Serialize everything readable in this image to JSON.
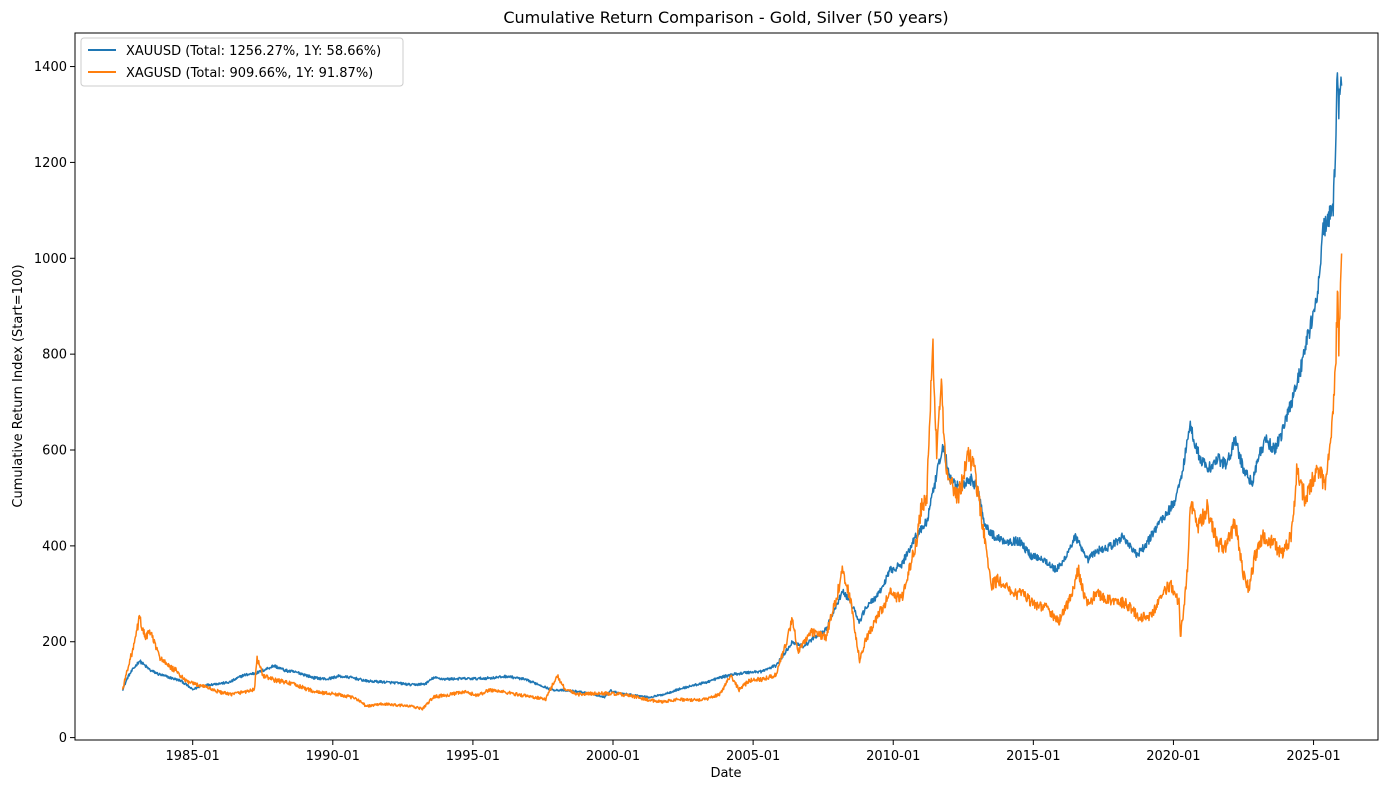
{
  "chart_data": {
    "type": "line",
    "title": "Cumulative Return Comparison - Gold, Silver (50 years)",
    "xlabel": "Date",
    "ylabel": "Cumulative Return Index (Start=100)",
    "xlim": [
      1980.8,
      2027.3
    ],
    "ylim": [
      -5,
      1470
    ],
    "xticks": [
      {
        "value": 1985.0,
        "label": "1985-01"
      },
      {
        "value": 1990.0,
        "label": "1990-01"
      },
      {
        "value": 1995.0,
        "label": "1995-01"
      },
      {
        "value": 2000.0,
        "label": "2000-01"
      },
      {
        "value": 2005.0,
        "label": "2005-01"
      },
      {
        "value": 2010.0,
        "label": "2010-01"
      },
      {
        "value": 2015.0,
        "label": "2015-01"
      },
      {
        "value": 2020.0,
        "label": "2020-01"
      },
      {
        "value": 2025.0,
        "label": "2025-01"
      }
    ],
    "yticks": [
      0,
      200,
      400,
      600,
      800,
      1000,
      1200,
      1400
    ],
    "grid": false,
    "legend_position": "top-left",
    "series": [
      {
        "name": "XAUUSD",
        "label": "XAUUSD (Total: 1256.27%, 1Y: 58.66%)",
        "color": "#1f77b4",
        "points": [
          [
            1982.5,
            100
          ],
          [
            1982.7,
            128
          ],
          [
            1982.9,
            145
          ],
          [
            1983.1,
            160
          ],
          [
            1983.3,
            150
          ],
          [
            1983.5,
            140
          ],
          [
            1983.8,
            132
          ],
          [
            1984.2,
            125
          ],
          [
            1984.6,
            118
          ],
          [
            1985.0,
            100
          ],
          [
            1985.3,
            108
          ],
          [
            1985.8,
            112
          ],
          [
            1986.3,
            115
          ],
          [
            1986.8,
            130
          ],
          [
            1987.3,
            135
          ],
          [
            1987.9,
            150
          ],
          [
            1988.3,
            140
          ],
          [
            1988.8,
            135
          ],
          [
            1989.3,
            125
          ],
          [
            1989.8,
            122
          ],
          [
            1990.2,
            128
          ],
          [
            1990.7,
            125
          ],
          [
            1991.2,
            118
          ],
          [
            1991.8,
            116
          ],
          [
            1992.3,
            114
          ],
          [
            1992.8,
            110
          ],
          [
            1993.3,
            112
          ],
          [
            1993.6,
            125
          ],
          [
            1994.0,
            122
          ],
          [
            1994.6,
            123
          ],
          [
            1995.2,
            123
          ],
          [
            1995.8,
            125
          ],
          [
            1996.2,
            128
          ],
          [
            1996.8,
            122
          ],
          [
            1997.3,
            112
          ],
          [
            1997.8,
            100
          ],
          [
            1998.3,
            98
          ],
          [
            1998.8,
            96
          ],
          [
            1999.3,
            90
          ],
          [
            1999.7,
            85
          ],
          [
            1999.9,
            98
          ],
          [
            2000.3,
            92
          ],
          [
            2000.8,
            88
          ],
          [
            2001.3,
            84
          ],
          [
            2001.8,
            90
          ],
          [
            2002.3,
            100
          ],
          [
            2002.8,
            108
          ],
          [
            2003.3,
            115
          ],
          [
            2003.8,
            125
          ],
          [
            2004.3,
            132
          ],
          [
            2004.8,
            136
          ],
          [
            2005.3,
            138
          ],
          [
            2005.8,
            150
          ],
          [
            2006.0,
            165
          ],
          [
            2006.4,
            200
          ],
          [
            2006.8,
            190
          ],
          [
            2007.2,
            210
          ],
          [
            2007.6,
            225
          ],
          [
            2008.0,
            280
          ],
          [
            2008.2,
            305
          ],
          [
            2008.5,
            280
          ],
          [
            2008.8,
            240
          ],
          [
            2009.0,
            270
          ],
          [
            2009.5,
            300
          ],
          [
            2009.9,
            350
          ],
          [
            2010.3,
            360
          ],
          [
            2010.8,
            420
          ],
          [
            2011.2,
            450
          ],
          [
            2011.6,
            560
          ],
          [
            2011.8,
            610
          ],
          [
            2012.0,
            540
          ],
          [
            2012.4,
            520
          ],
          [
            2012.8,
            540
          ],
          [
            2013.0,
            520
          ],
          [
            2013.3,
            440
          ],
          [
            2013.6,
            420
          ],
          [
            2014.0,
            410
          ],
          [
            2014.5,
            410
          ],
          [
            2014.9,
            380
          ],
          [
            2015.3,
            375
          ],
          [
            2015.8,
            350
          ],
          [
            2016.0,
            360
          ],
          [
            2016.5,
            420
          ],
          [
            2016.9,
            370
          ],
          [
            2017.3,
            390
          ],
          [
            2017.8,
            400
          ],
          [
            2018.2,
            420
          ],
          [
            2018.7,
            380
          ],
          [
            2019.0,
            400
          ],
          [
            2019.5,
            450
          ],
          [
            2019.8,
            470
          ],
          [
            2020.0,
            490
          ],
          [
            2020.2,
            520
          ],
          [
            2020.5,
            620
          ],
          [
            2020.6,
            650
          ],
          [
            2020.9,
            590
          ],
          [
            2021.2,
            560
          ],
          [
            2021.6,
            580
          ],
          [
            2021.9,
            570
          ],
          [
            2022.2,
            620
          ],
          [
            2022.5,
            560
          ],
          [
            2022.8,
            530
          ],
          [
            2023.0,
            580
          ],
          [
            2023.3,
            620
          ],
          [
            2023.6,
            600
          ],
          [
            2023.9,
            640
          ],
          [
            2024.2,
            700
          ],
          [
            2024.5,
            760
          ],
          [
            2024.8,
            840
          ],
          [
            2025.0,
            880
          ],
          [
            2025.2,
            950
          ],
          [
            2025.3,
            1050
          ],
          [
            2025.5,
            1080
          ],
          [
            2025.7,
            1100
          ],
          [
            2025.8,
            1250
          ],
          [
            2025.85,
            1400
          ],
          [
            2025.9,
            1320
          ],
          [
            2026.0,
            1360
          ]
        ]
      },
      {
        "name": "XAGUSD",
        "label": "XAGUSD (Total: 909.66%, 1Y: 91.87%)",
        "color": "#ff7f0e",
        "points": [
          [
            1982.5,
            100
          ],
          [
            1982.7,
            150
          ],
          [
            1982.9,
            190
          ],
          [
            1983.1,
            250
          ],
          [
            1983.3,
            210
          ],
          [
            1983.5,
            220
          ],
          [
            1983.8,
            170
          ],
          [
            1984.1,
            150
          ],
          [
            1984.4,
            140
          ],
          [
            1984.7,
            120
          ],
          [
            1985.0,
            112
          ],
          [
            1985.4,
            108
          ],
          [
            1985.8,
            98
          ],
          [
            1986.3,
            90
          ],
          [
            1986.8,
            95
          ],
          [
            1987.2,
            100
          ],
          [
            1987.3,
            165
          ],
          [
            1987.5,
            130
          ],
          [
            1987.9,
            120
          ],
          [
            1988.4,
            115
          ],
          [
            1988.9,
            105
          ],
          [
            1989.4,
            95
          ],
          [
            1989.9,
            92
          ],
          [
            1990.4,
            88
          ],
          [
            1990.9,
            80
          ],
          [
            1991.2,
            65
          ],
          [
            1991.7,
            70
          ],
          [
            1992.3,
            68
          ],
          [
            1992.8,
            65
          ],
          [
            1993.2,
            60
          ],
          [
            1993.6,
            85
          ],
          [
            1994.2,
            90
          ],
          [
            1994.7,
            95
          ],
          [
            1995.2,
            88
          ],
          [
            1995.6,
            100
          ],
          [
            1996.1,
            95
          ],
          [
            1996.6,
            90
          ],
          [
            1997.1,
            85
          ],
          [
            1997.6,
            80
          ],
          [
            1998.0,
            130
          ],
          [
            1998.3,
            100
          ],
          [
            1998.8,
            90
          ],
          [
            1999.3,
            92
          ],
          [
            1999.8,
            92
          ],
          [
            2000.3,
            90
          ],
          [
            2000.8,
            85
          ],
          [
            2001.3,
            78
          ],
          [
            2001.8,
            75
          ],
          [
            2002.3,
            80
          ],
          [
            2002.8,
            78
          ],
          [
            2003.3,
            80
          ],
          [
            2003.8,
            90
          ],
          [
            2004.2,
            130
          ],
          [
            2004.5,
            100
          ],
          [
            2004.9,
            120
          ],
          [
            2005.3,
            122
          ],
          [
            2005.8,
            130
          ],
          [
            2006.2,
            200
          ],
          [
            2006.4,
            250
          ],
          [
            2006.6,
            180
          ],
          [
            2007.1,
            220
          ],
          [
            2007.6,
            210
          ],
          [
            2008.0,
            300
          ],
          [
            2008.2,
            350
          ],
          [
            2008.5,
            280
          ],
          [
            2008.8,
            160
          ],
          [
            2009.0,
            200
          ],
          [
            2009.5,
            260
          ],
          [
            2009.9,
            300
          ],
          [
            2010.3,
            290
          ],
          [
            2010.8,
            400
          ],
          [
            2011.0,
            480
          ],
          [
            2011.2,
            500
          ],
          [
            2011.4,
            830
          ],
          [
            2011.55,
            600
          ],
          [
            2011.7,
            750
          ],
          [
            2011.9,
            550
          ],
          [
            2012.3,
            500
          ],
          [
            2012.7,
            590
          ],
          [
            2012.9,
            560
          ],
          [
            2013.1,
            480
          ],
          [
            2013.3,
            400
          ],
          [
            2013.5,
            320
          ],
          [
            2013.8,
            330
          ],
          [
            2014.2,
            300
          ],
          [
            2014.6,
            300
          ],
          [
            2015.0,
            280
          ],
          [
            2015.5,
            270
          ],
          [
            2015.9,
            240
          ],
          [
            2016.3,
            290
          ],
          [
            2016.6,
            350
          ],
          [
            2016.9,
            280
          ],
          [
            2017.3,
            300
          ],
          [
            2017.8,
            285
          ],
          [
            2018.3,
            280
          ],
          [
            2018.8,
            250
          ],
          [
            2019.2,
            255
          ],
          [
            2019.6,
            300
          ],
          [
            2019.9,
            320
          ],
          [
            2020.2,
            280
          ],
          [
            2020.25,
            205
          ],
          [
            2020.5,
            350
          ],
          [
            2020.6,
            500
          ],
          [
            2020.9,
            440
          ],
          [
            2021.2,
            480
          ],
          [
            2021.6,
            400
          ],
          [
            2021.9,
            400
          ],
          [
            2022.2,
            450
          ],
          [
            2022.5,
            340
          ],
          [
            2022.7,
            310
          ],
          [
            2022.9,
            380
          ],
          [
            2023.2,
            420
          ],
          [
            2023.5,
            410
          ],
          [
            2023.9,
            380
          ],
          [
            2024.2,
            420
          ],
          [
            2024.4,
            550
          ],
          [
            2024.7,
            500
          ],
          [
            2024.9,
            530
          ],
          [
            2025.2,
            560
          ],
          [
            2025.4,
            520
          ],
          [
            2025.6,
            600
          ],
          [
            2025.7,
            680
          ],
          [
            2025.8,
            800
          ],
          [
            2025.85,
            930
          ],
          [
            2025.9,
            820
          ],
          [
            2026.0,
            1010
          ]
        ]
      }
    ]
  }
}
